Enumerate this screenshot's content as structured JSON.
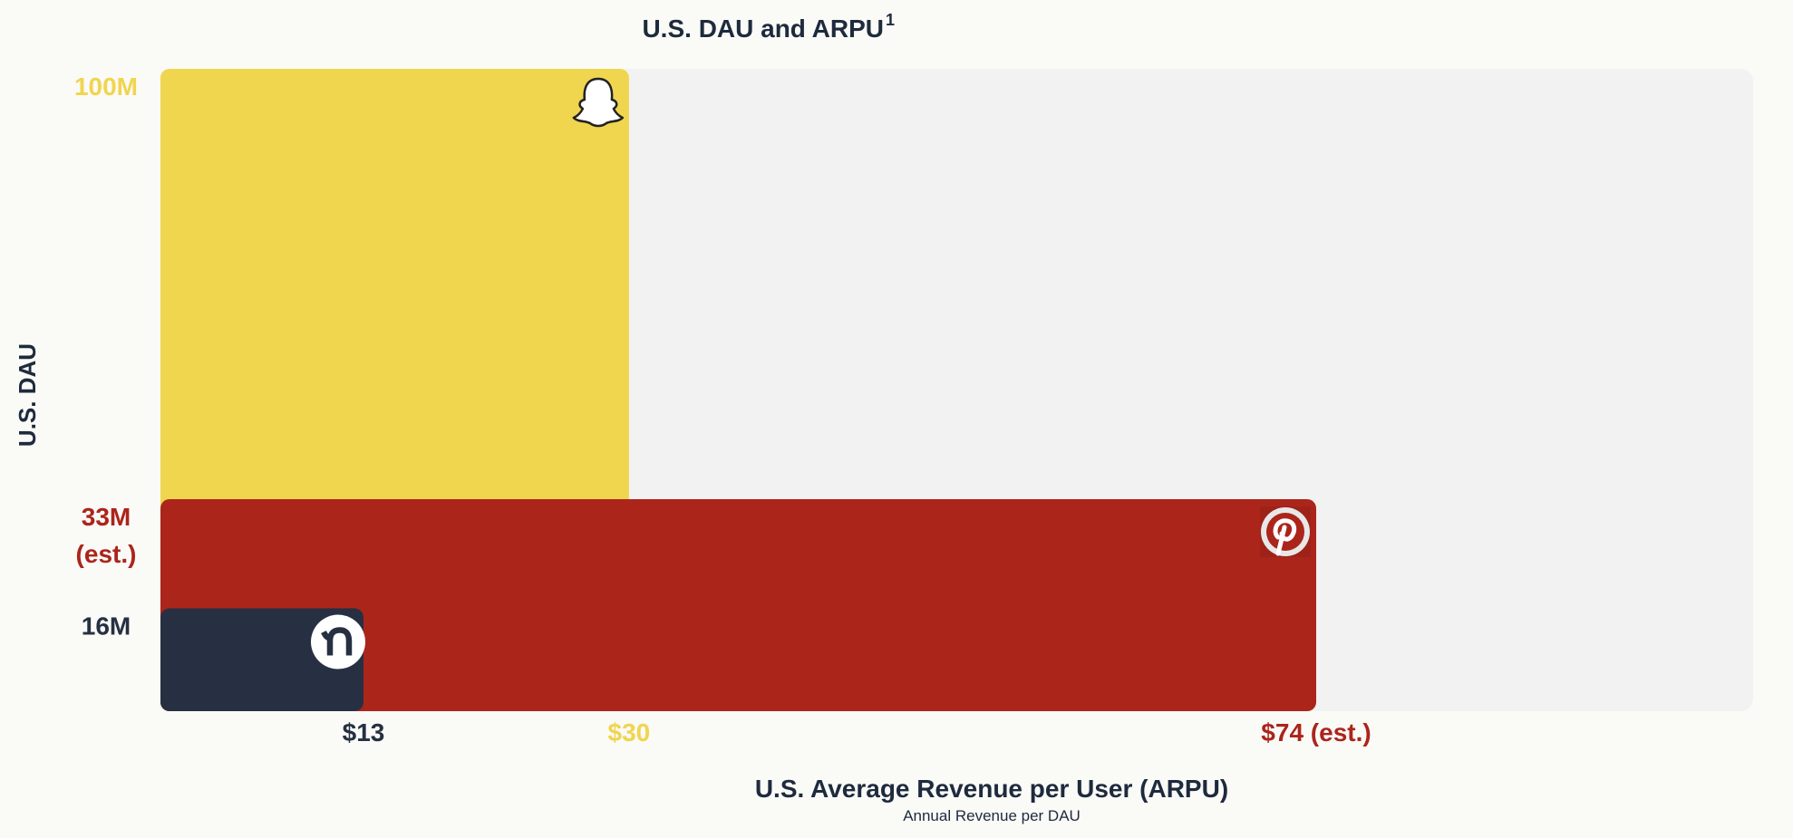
{
  "chart_data": {
    "type": "bar",
    "title": "U.S. DAU and ARPU",
    "title_superscript": "1",
    "xlabel": "U.S. Average Revenue per User (ARPU)",
    "xlabel_sub": "Annual Revenue per DAU",
    "ylabel": "U.S. DAU",
    "series": [
      {
        "icon": "snapchat-ghost-icon",
        "dau_millions": 100,
        "arpu_usd": 30,
        "dau_label": "100M",
        "arpu_label": "$30",
        "color": "#f0d54e"
      },
      {
        "icon": "pinterest-icon",
        "dau_millions": 33,
        "arpu_usd": 74,
        "dau_label": "33M",
        "dau_label_note": "(est.)",
        "arpu_label": "$74 (est.)",
        "color": "#ab251b"
      },
      {
        "icon": "nextdoor-icon",
        "dau_millions": 16,
        "arpu_usd": 13,
        "dau_label": "16M",
        "arpu_label": "$13",
        "color": "#263042"
      }
    ],
    "background_color": "#f2f2f2",
    "text_color": "#1e2a3d"
  }
}
